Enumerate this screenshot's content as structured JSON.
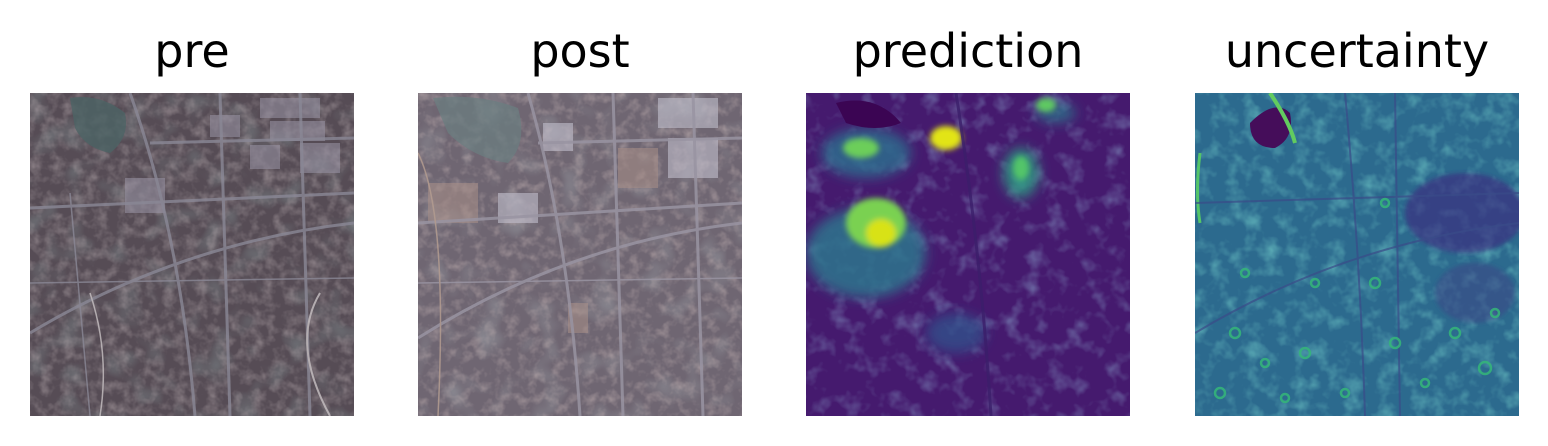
{
  "panels": [
    {
      "title": "pre"
    },
    {
      "title": "post"
    },
    {
      "title": "prediction"
    },
    {
      "title": "uncertainty"
    }
  ],
  "colors": {
    "pre_base": "#5a4f57",
    "post_base": "#6f6672",
    "viridis_low": "#440154",
    "viridis_mid": "#21918c",
    "viridis_high": "#fde725"
  }
}
